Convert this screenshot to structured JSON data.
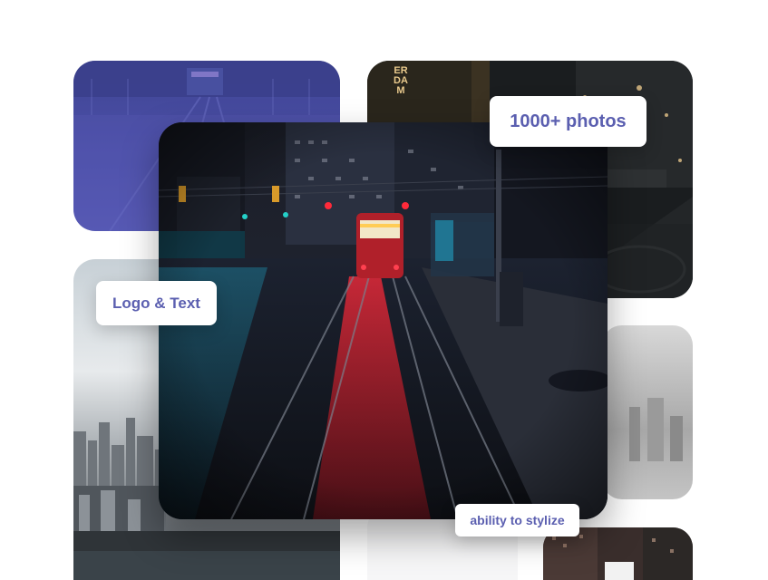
{
  "badges": {
    "photos": "1000+ photos",
    "logo_text": "Logo & Text",
    "stylize": "ability to stylize"
  },
  "signage": {
    "theater": "ERDAM"
  },
  "colors": {
    "badge_text": "#5b5fb0",
    "badge_bg": "#ffffff",
    "blue_tint": "#4e4fa8"
  }
}
